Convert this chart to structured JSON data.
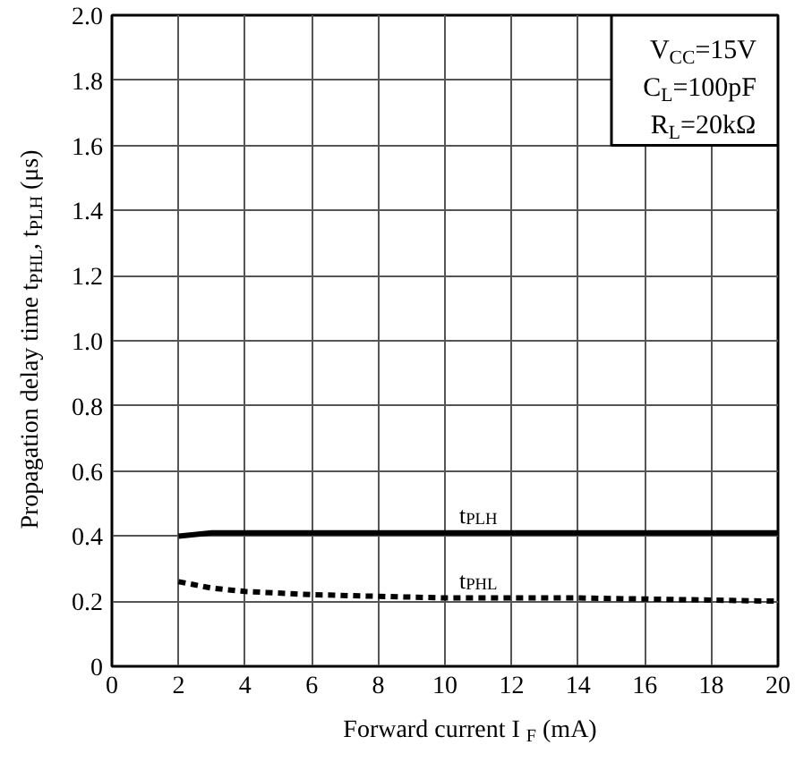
{
  "chart_data": {
    "type": "line",
    "xlabel": "Forward current  I$_{F}$ (mA)",
    "ylabel": "Propagation delay time t$_{PHL}$, t$_{PLH}$ (μs)",
    "annotations": [
      "V$_{CC}$=15V",
      "C$_{L}$=100pF",
      "R$_{L}$=20kΩ"
    ],
    "series": [
      {
        "name": "t$_{PLH}$",
        "color": "#000000",
        "line_style": "solid",
        "x": [
          2,
          3,
          4,
          6,
          8,
          10,
          14,
          20
        ],
        "values": [
          0.4,
          0.41,
          0.41,
          0.41,
          0.41,
          0.41,
          0.41,
          0.41
        ]
      },
      {
        "name": "t$_{PHL}$",
        "color": "#000000",
        "line_style": "dashed",
        "x": [
          2,
          3,
          4,
          6,
          8,
          10,
          14,
          20
        ],
        "values": [
          0.26,
          0.24,
          0.23,
          0.22,
          0.215,
          0.21,
          0.21,
          0.2
        ]
      }
    ],
    "xlim": [
      0,
      20
    ],
    "ylim": [
      0,
      2
    ],
    "xticks": [
      0,
      2,
      4,
      6,
      8,
      10,
      12,
      14,
      16,
      18,
      20
    ],
    "yticks": [
      0,
      0.2,
      0.4,
      0.6,
      0.8,
      {
        "value": 1,
        "label": "1.0"
      },
      1.2,
      1.4,
      1.6,
      1.8,
      {
        "value": 2,
        "label": "2.0"
      }
    ],
    "grid": true,
    "legend": false,
    "marker": "none"
  }
}
